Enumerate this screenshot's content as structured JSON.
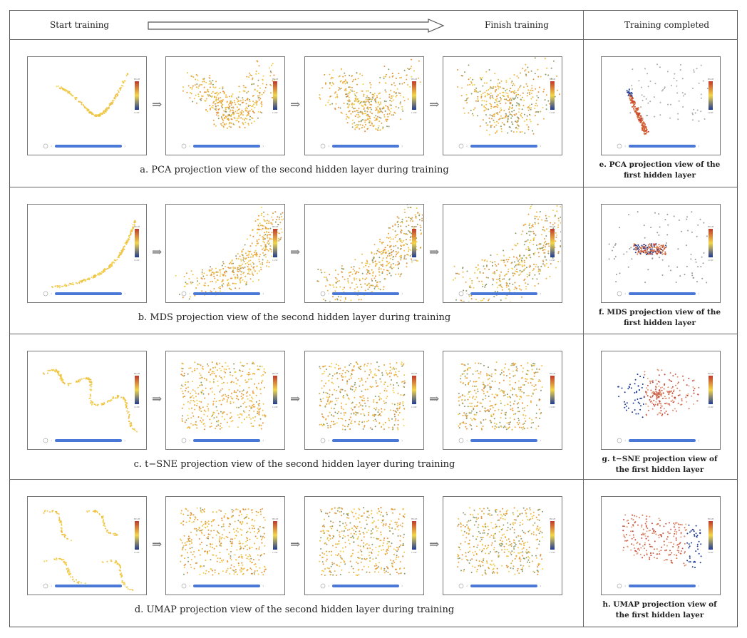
{
  "header": {
    "start": "Start training",
    "finish": "Finish training",
    "completed": "Training completed"
  },
  "colorbar": {
    "high": "HIGH",
    "low": "LOW"
  },
  "rows": [
    {
      "method": "PCA",
      "caption": "a. PCA projection view of the second hidden layer during training",
      "right_caption": "e. PCA projection view of the first hidden layer"
    },
    {
      "method": "MDS",
      "caption": "b. MDS projection view of the second hidden layer during training",
      "right_caption": "f. MDS projection view of the first hidden layer"
    },
    {
      "method": "t-SNE",
      "caption": "c. t−SNE projection view of the second hidden layer during training",
      "right_caption": "g. t−SNE projection view of the first hidden layer"
    },
    {
      "method": "UMAP",
      "caption": "d. UMAP projection view of the second hidden layer during training",
      "right_caption": "h. UMAP projection view of the first hidden layer"
    }
  ],
  "colors": {
    "high": "#c0392b",
    "mid": "#f2d64b",
    "low": "#1f3a93",
    "slider": "#4a78d6"
  }
}
